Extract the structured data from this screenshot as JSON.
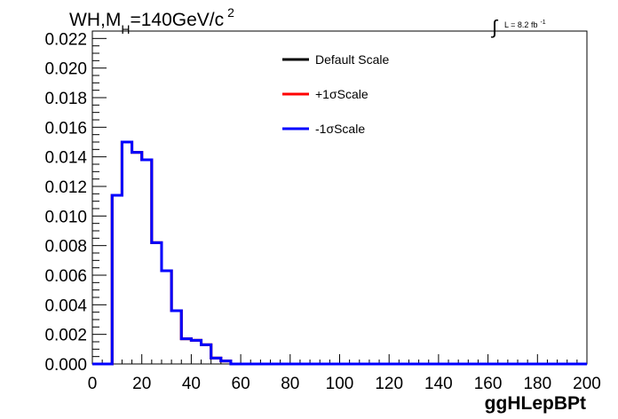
{
  "title": {
    "main": "WH,M",
    "sub": "H",
    "rest": "=140GeV/c",
    "sup": "2"
  },
  "lumi": {
    "symbol": "∫",
    "text": "L = 8.2 fb",
    "sup": "-1"
  },
  "legend": [
    {
      "label": "Default Scale",
      "color": "#000000"
    },
    {
      "label": "+1σScale",
      "color": "#ff0000"
    },
    {
      "label": "-1σScale",
      "color": "#0000ff"
    }
  ],
  "chart_data": {
    "type": "histogram",
    "xlabel": "ggHLepBPt",
    "ylabel": "",
    "xlim": [
      0,
      200
    ],
    "ylim": [
      0,
      0.0225
    ],
    "bin_width": 4,
    "x_ticks": [
      "0",
      "20",
      "40",
      "60",
      "80",
      "100",
      "120",
      "140",
      "160",
      "180",
      "200"
    ],
    "y_ticks": [
      "0.000",
      "0.002",
      "0.004",
      "0.006",
      "0.008",
      "0.010",
      "0.012",
      "0.014",
      "0.016",
      "0.018",
      "0.020",
      "0.022"
    ],
    "bins_start": [
      0,
      4,
      8,
      12,
      16,
      20,
      24,
      28,
      32,
      36,
      40,
      44,
      48,
      52,
      56
    ],
    "series": [
      {
        "name": "Default Scale",
        "color": "#000000",
        "values": [
          0,
          0,
          0.0114,
          0.015,
          0.0143,
          0.0138,
          0.0082,
          0.0063,
          0.0036,
          0.0017,
          0.0016,
          0.0013,
          0.0004,
          0.0002,
          0
        ]
      },
      {
        "name": "+1σScale",
        "color": "#ff0000",
        "values": [
          0,
          0,
          0.0114,
          0.015,
          0.0143,
          0.0138,
          0.0082,
          0.0063,
          0.0036,
          0.0017,
          0.0016,
          0.0013,
          0.0004,
          0.0002,
          0
        ]
      },
      {
        "name": "-1σScale",
        "color": "#0000ff",
        "values": [
          0,
          0,
          0.0114,
          0.015,
          0.0143,
          0.0138,
          0.0082,
          0.0063,
          0.0036,
          0.0017,
          0.0016,
          0.0013,
          0.0004,
          0.0002,
          0
        ]
      }
    ]
  }
}
